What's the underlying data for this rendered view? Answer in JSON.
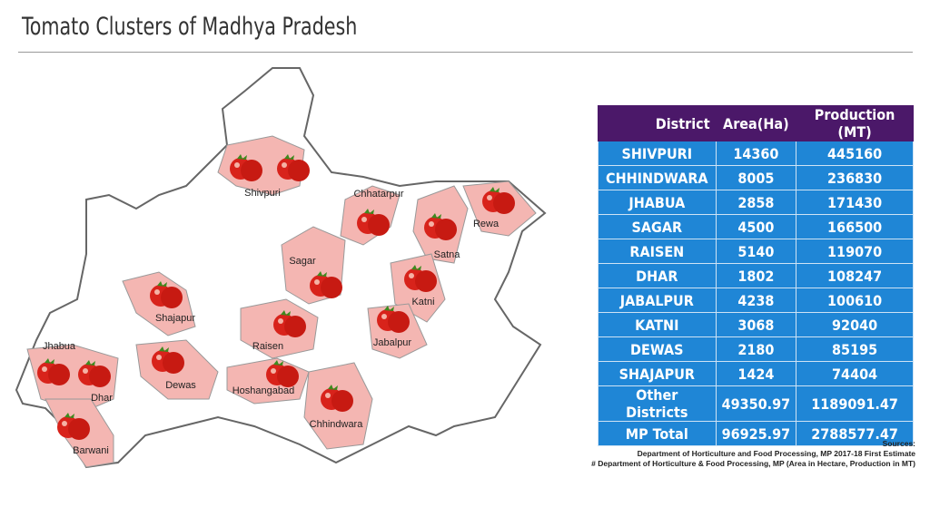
{
  "title": "Tomato Clusters of Madhya Pradesh",
  "map": {
    "labels": [
      "Shivpuri",
      "Chhatarpur",
      "Rewa",
      "Satna",
      "Sagar",
      "Katni",
      "Shajapur",
      "Raisen",
      "Jabalpur",
      "Jhabua",
      "Dhar",
      "Dewas",
      "Hoshangabad",
      "Chhindwara",
      "Barwani"
    ]
  },
  "table": {
    "header": [
      "District",
      "Area(Ha)",
      "Production (MT)"
    ],
    "rows": [
      [
        "SHIVPURI",
        "14360",
        "445160"
      ],
      [
        "CHHINDWARA",
        "8005",
        "236830"
      ],
      [
        "JHABUA",
        "2858",
        "171430"
      ],
      [
        "SAGAR",
        "4500",
        "166500"
      ],
      [
        "RAISEN",
        "5140",
        "119070"
      ],
      [
        "DHAR",
        "1802",
        "108247"
      ],
      [
        "JABALPUR",
        "4238",
        "100610"
      ],
      [
        "KATNI",
        "3068",
        "92040"
      ],
      [
        "DEWAS",
        "2180",
        "85195"
      ],
      [
        "SHAJAPUR",
        "1424",
        "74404"
      ],
      [
        "Other Districts",
        "49350.97",
        "1189091.47"
      ],
      [
        "MP Total",
        "96925.97",
        "2788577.47"
      ]
    ]
  },
  "sources": {
    "heading": "Sources:",
    "lines": [
      "Department of Horticulture and Food Processing, MP 2017-18 First Estimate",
      "# Department of Horticulture & Food Processing, MP (Area in Hectare, Production in MT)"
    ]
  }
}
